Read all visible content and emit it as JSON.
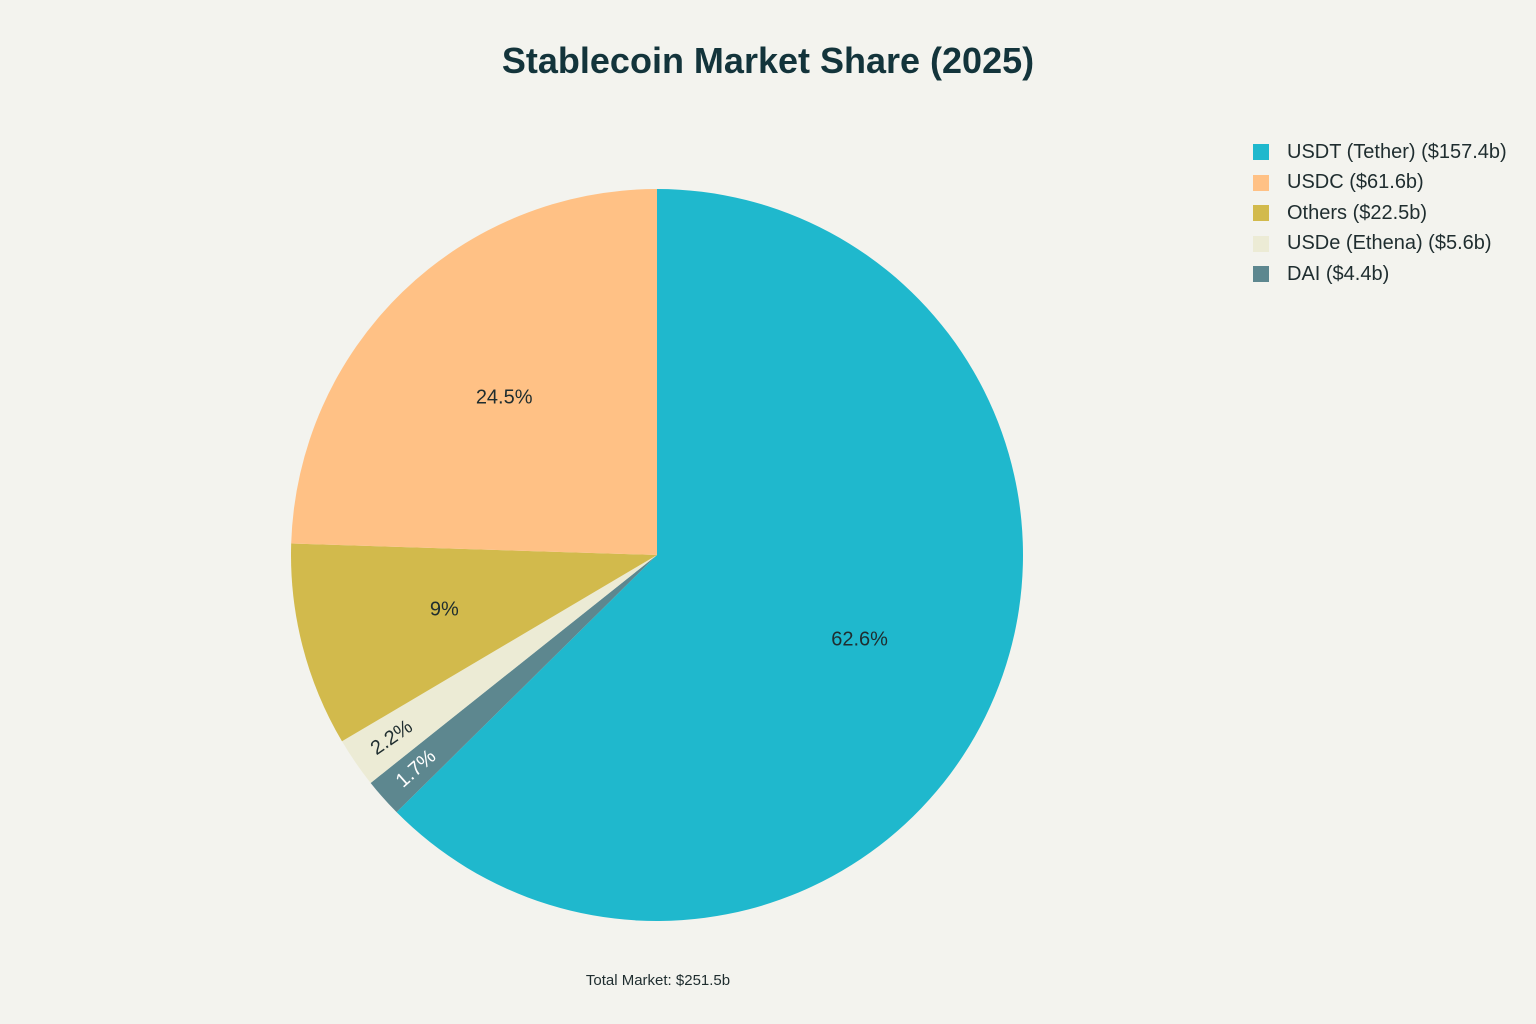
{
  "chart_data": {
    "type": "pie",
    "title": "Stablecoin Market Share (2025)",
    "start_angle_deg": 0,
    "direction": "clockwise",
    "slices": [
      {
        "legend": "USDT (Tether) ($157.4b)",
        "label": "62.6%",
        "value": 62.6,
        "color": "#1fb8cd"
      },
      {
        "legend": "DAI ($4.4b)",
        "label": "1.7%",
        "value": 1.7,
        "color": "#5d878f"
      },
      {
        "legend": "USDe (Ethena) ($5.6b)",
        "label": "2.2%",
        "value": 2.2,
        "color": "#ecebd5"
      },
      {
        "legend": "Others ($22.5b)",
        "label": "9%",
        "value": 9.0,
        "color": "#d2ba4c"
      },
      {
        "legend": "USDC ($61.6b)",
        "label": "24.5%",
        "value": 24.5,
        "color": "#ffc185"
      }
    ],
    "legend_order": [
      "USDT (Tether) ($157.4b)",
      "USDC ($61.6b)",
      "Others ($22.5b)",
      "USDe (Ethena) ($5.6b)",
      "DAI ($4.4b)"
    ],
    "legend_placement": "top-right",
    "annotation": "Total Market: $251.5b"
  }
}
